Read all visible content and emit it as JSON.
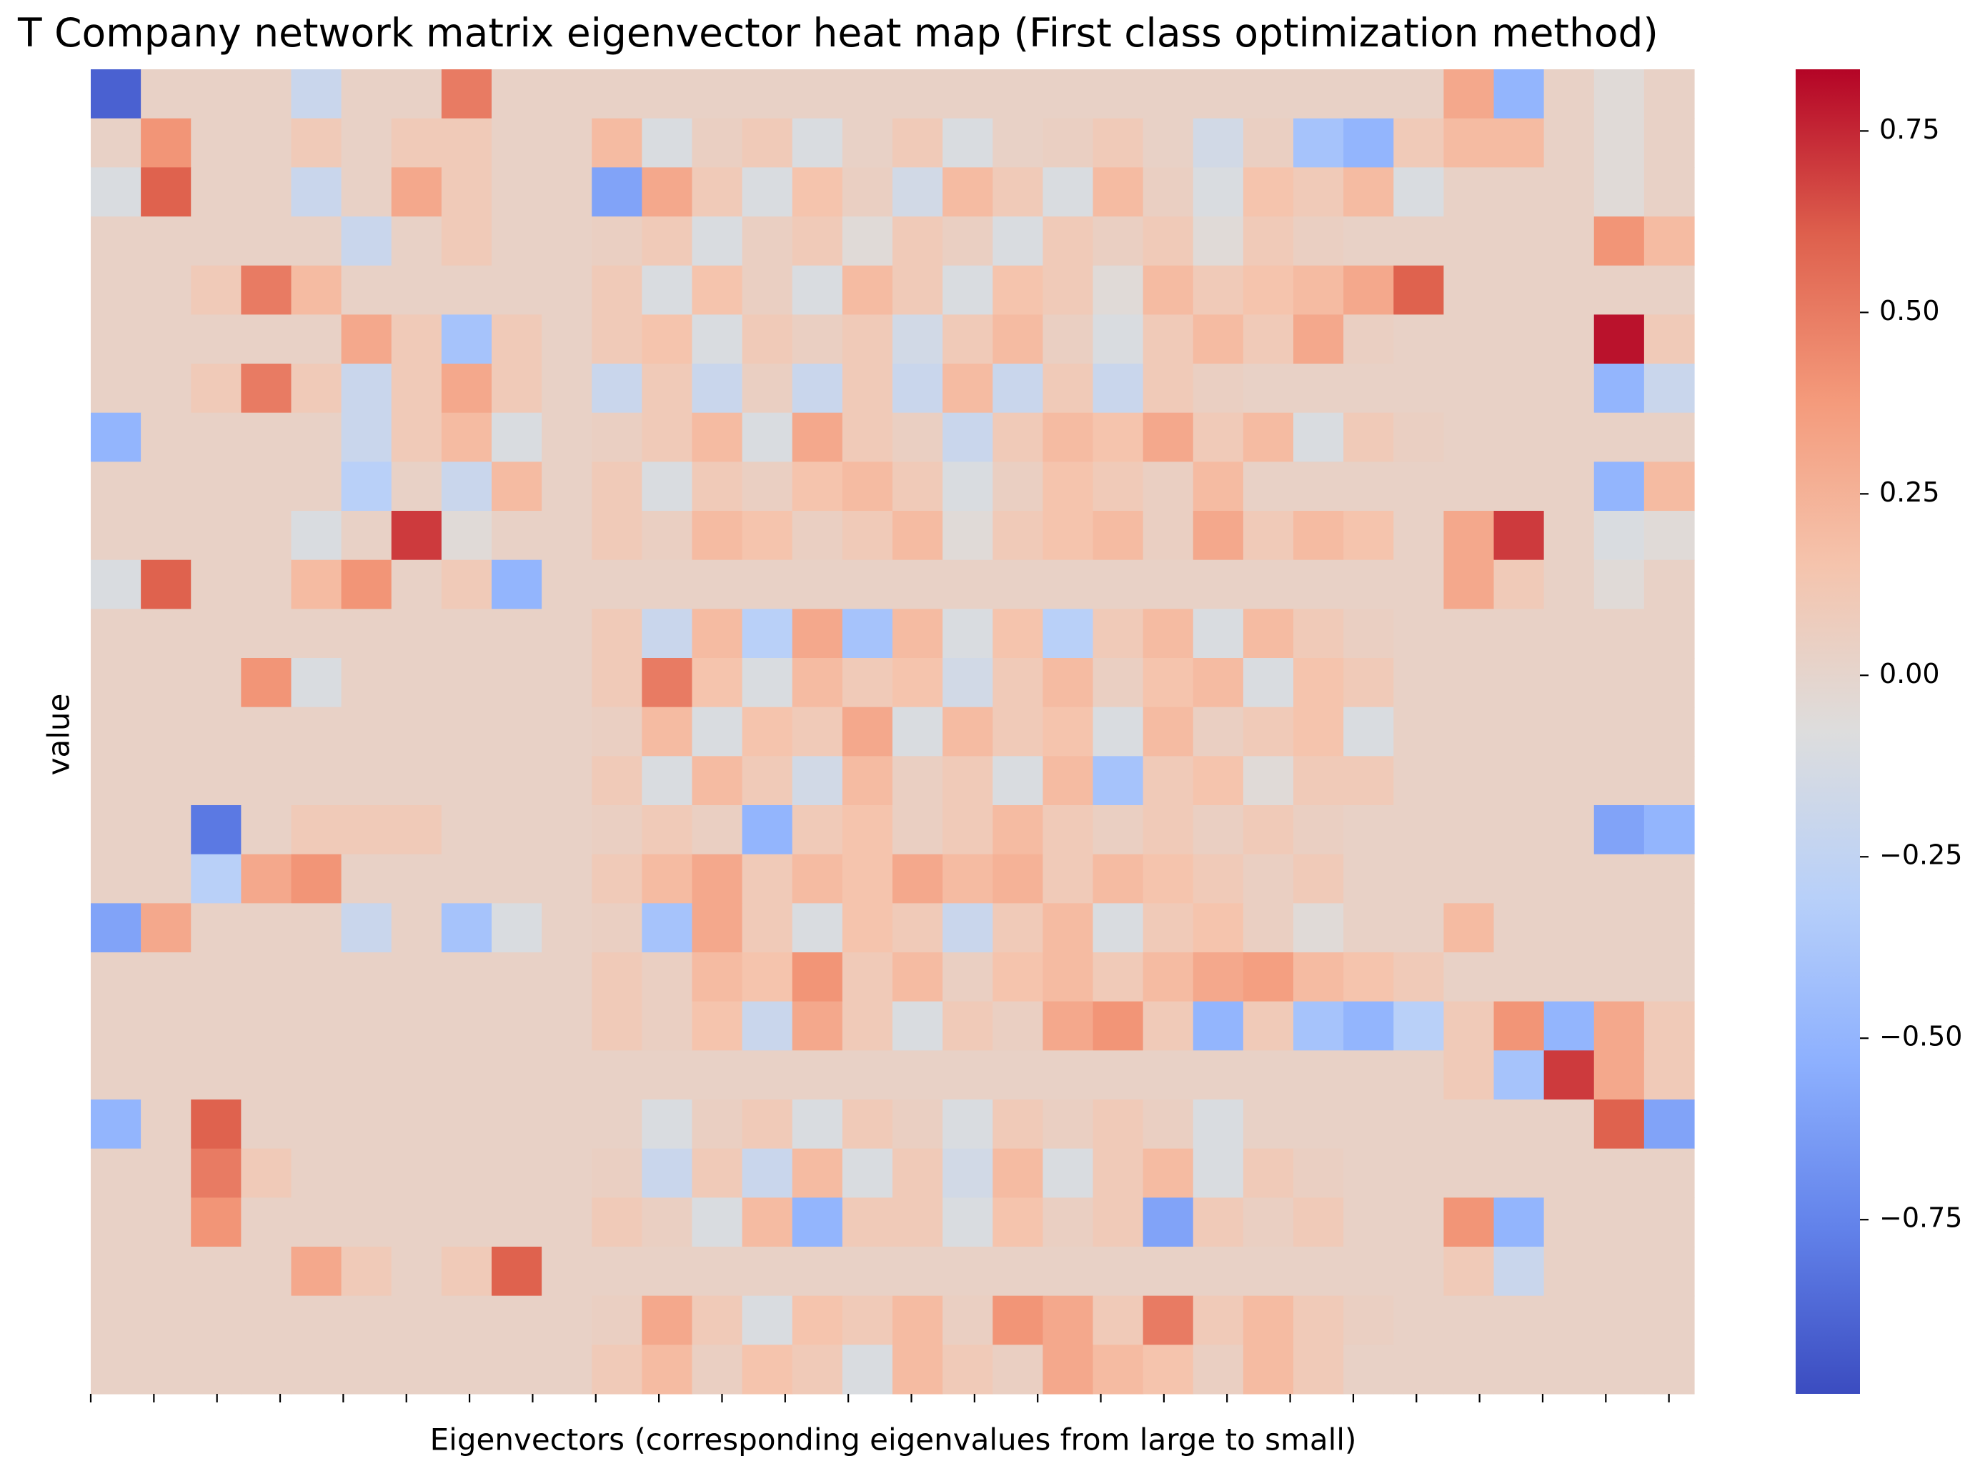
{
  "chart_data": {
    "type": "heatmap",
    "title": "T Company network matrix eigenvector heat map (First class optimization method)",
    "xlabel": "Eigenvectors (corresponding eigenvalues from large to small)",
    "ylabel": "value",
    "colormap": "coolwarm",
    "clim": [
      -0.99,
      0.835
    ],
    "cticks": [
      0.75,
      {
        "value": 0.5,
        "label": "0.50"
      },
      0.25,
      {
        "value": 0,
        "label": "0.00"
      },
      {
        "value": -0.25,
        "label": "−0.25"
      },
      {
        "value": -0.5,
        "label": "−0.50"
      },
      {
        "value": -0.75,
        "label": "−0.75"
      }
    ],
    "xlim": [
      0,
      127
    ],
    "xticks": [
      0,
      5,
      10,
      15,
      20,
      25,
      30,
      35,
      40,
      45,
      50,
      55,
      60,
      65,
      70,
      75,
      80,
      85,
      90,
      95,
      100,
      105,
      110,
      115,
      120,
      125
    ],
    "values": [
      [
        -0.9,
        0.03,
        0.03,
        0.03,
        -0.2,
        0.03,
        0.03,
        0.5,
        0.03,
        0.03,
        0.03,
        0.03,
        0.03,
        0.03,
        0.03,
        0.03,
        0.03,
        0.03,
        0.03,
        0.03,
        0.03,
        0.03,
        0.03,
        0.03,
        0.03,
        0.03,
        0.03,
        0.3,
        -0.5,
        0.03,
        -0.05,
        0.03
      ],
      [
        0.03,
        0.4,
        0.03,
        0.03,
        0.1,
        0.03,
        0.1,
        0.1,
        0.03,
        0.03,
        0.2,
        -0.1,
        0.05,
        0.1,
        -0.1,
        0.03,
        0.1,
        -0.1,
        0.03,
        0.05,
        0.1,
        0.03,
        -0.15,
        0.05,
        -0.4,
        -0.5,
        0.1,
        0.2,
        0.2,
        0.03,
        -0.05,
        0.03
      ],
      [
        -0.1,
        0.6,
        0.03,
        0.03,
        -0.2,
        0.03,
        0.3,
        0.1,
        0.03,
        0.03,
        -0.6,
        0.3,
        0.1,
        -0.1,
        0.15,
        0.05,
        -0.15,
        0.2,
        0.1,
        -0.1,
        0.2,
        0.05,
        -0.1,
        0.15,
        0.1,
        0.2,
        -0.1,
        0.03,
        0.03,
        0.03,
        -0.05,
        0.03
      ],
      [
        0.03,
        0.03,
        0.03,
        0.03,
        0.03,
        -0.2,
        0.03,
        0.1,
        0.03,
        0.03,
        0.05,
        0.1,
        -0.1,
        0.05,
        0.1,
        -0.05,
        0.1,
        0.05,
        -0.1,
        0.1,
        0.05,
        0.1,
        -0.05,
        0.1,
        0.05,
        0.03,
        0.03,
        0.03,
        0.03,
        0.03,
        0.4,
        0.2
      ],
      [
        0.03,
        0.03,
        0.1,
        0.5,
        0.2,
        0.03,
        0.03,
        0.03,
        0.03,
        0.03,
        0.1,
        -0.1,
        0.15,
        0.05,
        -0.1,
        0.2,
        0.1,
        -0.1,
        0.15,
        0.1,
        -0.05,
        0.2,
        0.1,
        0.15,
        0.2,
        0.3,
        0.6,
        0.03,
        0.03,
        0.03,
        0.03,
        0.03
      ],
      [
        0.03,
        0.03,
        0.03,
        0.03,
        0.03,
        0.3,
        0.1,
        -0.4,
        0.1,
        0.03,
        0.1,
        0.15,
        -0.1,
        0.1,
        0.05,
        0.1,
        -0.15,
        0.1,
        0.2,
        0.05,
        -0.1,
        0.1,
        0.2,
        0.1,
        0.3,
        0.05,
        0.03,
        0.03,
        0.03,
        0.03,
        0.8,
        0.1
      ],
      [
        0.03,
        0.03,
        0.1,
        0.5,
        0.1,
        -0.2,
        0.1,
        0.3,
        0.1,
        0.03,
        -0.2,
        0.1,
        -0.2,
        0.05,
        -0.2,
        0.1,
        -0.2,
        0.2,
        -0.2,
        0.1,
        -0.2,
        0.1,
        0.05,
        0.03,
        0.03,
        0.03,
        0.03,
        0.03,
        0.03,
        0.03,
        -0.5,
        -0.2
      ],
      [
        -0.5,
        0.03,
        0.03,
        0.03,
        0.03,
        -0.2,
        0.1,
        0.2,
        -0.1,
        0.03,
        0.05,
        0.1,
        0.2,
        -0.1,
        0.3,
        0.1,
        0.05,
        -0.2,
        0.1,
        0.2,
        0.15,
        0.3,
        0.1,
        0.2,
        -0.1,
        0.1,
        0.05,
        0.03,
        0.03,
        0.03,
        0.03,
        0.03
      ],
      [
        0.03,
        0.03,
        0.03,
        0.03,
        0.03,
        -0.3,
        0.03,
        -0.2,
        0.2,
        0.03,
        0.1,
        -0.1,
        0.1,
        0.05,
        0.15,
        0.2,
        0.1,
        -0.1,
        0.05,
        0.15,
        0.1,
        0.05,
        0.2,
        0.03,
        0.03,
        0.03,
        0.03,
        0.03,
        0.03,
        0.03,
        -0.5,
        0.2
      ],
      [
        0.03,
        0.03,
        0.03,
        0.03,
        -0.1,
        0.03,
        0.7,
        -0.05,
        0.03,
        0.03,
        0.1,
        0.05,
        0.2,
        0.15,
        0.05,
        0.1,
        0.2,
        -0.05,
        0.1,
        0.15,
        0.2,
        0.05,
        0.3,
        0.1,
        0.2,
        0.15,
        0.03,
        0.3,
        0.7,
        0.03,
        -0.1,
        -0.05
      ],
      [
        -0.1,
        0.6,
        0.03,
        0.03,
        0.2,
        0.4,
        0.03,
        0.1,
        -0.5,
        0.03,
        0.03,
        0.03,
        0.03,
        0.03,
        0.03,
        0.03,
        0.03,
        0.03,
        0.03,
        0.03,
        0.03,
        0.03,
        0.03,
        0.03,
        0.03,
        0.03,
        0.03,
        0.3,
        0.1,
        0.03,
        -0.05,
        0.03
      ],
      [
        0.03,
        0.03,
        0.03,
        0.03,
        0.03,
        0.03,
        0.03,
        0.03,
        0.03,
        0.03,
        0.1,
        -0.2,
        0.2,
        -0.3,
        0.3,
        -0.4,
        0.2,
        -0.1,
        0.15,
        -0.3,
        0.1,
        0.2,
        -0.1,
        0.2,
        0.1,
        0.05,
        0.03,
        0.03,
        0.03,
        0.03,
        0.03,
        0.03
      ],
      [
        0.03,
        0.03,
        0.03,
        0.4,
        -0.1,
        0.03,
        0.03,
        0.03,
        0.03,
        0.03,
        0.1,
        0.5,
        0.15,
        -0.1,
        0.2,
        0.1,
        0.15,
        -0.15,
        0.1,
        0.2,
        0.05,
        0.15,
        0.2,
        -0.1,
        0.15,
        0.1,
        0.03,
        0.03,
        0.03,
        0.03,
        0.03,
        0.03
      ],
      [
        0.03,
        0.03,
        0.03,
        0.03,
        0.03,
        0.03,
        0.03,
        0.03,
        0.03,
        0.03,
        0.05,
        0.2,
        -0.1,
        0.15,
        0.1,
        0.3,
        -0.1,
        0.2,
        0.1,
        0.15,
        -0.1,
        0.2,
        0.05,
        0.1,
        0.15,
        -0.1,
        0.03,
        0.03,
        0.03,
        0.03,
        0.03,
        0.03
      ],
      [
        0.03,
        0.03,
        0.03,
        0.03,
        0.03,
        0.03,
        0.03,
        0.03,
        0.03,
        0.03,
        0.1,
        -0.1,
        0.2,
        0.1,
        -0.15,
        0.2,
        0.05,
        0.1,
        -0.1,
        0.2,
        -0.4,
        0.1,
        0.15,
        -0.05,
        0.1,
        0.1,
        0.03,
        0.03,
        0.03,
        0.03,
        0.03,
        0.03
      ],
      [
        0.03,
        0.03,
        -0.8,
        0.03,
        0.1,
        0.1,
        0.1,
        0.03,
        0.03,
        0.03,
        0.05,
        0.1,
        0.05,
        -0.5,
        0.1,
        0.15,
        0.05,
        0.1,
        0.2,
        0.1,
        0.05,
        0.1,
        0.05,
        0.1,
        0.05,
        0.03,
        0.03,
        0.03,
        0.03,
        0.03,
        -0.6,
        -0.5
      ],
      [
        0.03,
        0.03,
        -0.3,
        0.3,
        0.4,
        0.03,
        0.03,
        0.03,
        0.03,
        0.03,
        0.1,
        0.2,
        0.3,
        0.1,
        0.2,
        0.15,
        0.3,
        0.2,
        0.25,
        0.1,
        0.2,
        0.15,
        0.1,
        0.05,
        0.1,
        0.03,
        0.03,
        0.03,
        0.03,
        0.03,
        0.03,
        0.03
      ],
      [
        -0.6,
        0.3,
        0.03,
        0.03,
        0.03,
        -0.2,
        0.03,
        -0.4,
        -0.1,
        0.03,
        0.05,
        -0.4,
        0.3,
        0.1,
        -0.1,
        0.15,
        0.1,
        -0.2,
        0.1,
        0.2,
        -0.1,
        0.1,
        0.15,
        0.05,
        -0.05,
        0.03,
        0.03,
        0.2,
        0.03,
        0.03,
        0.03,
        0.03
      ],
      [
        0.03,
        0.03,
        0.03,
        0.03,
        0.03,
        0.03,
        0.03,
        0.03,
        0.03,
        0.03,
        0.1,
        0.05,
        0.2,
        0.15,
        0.4,
        0.1,
        0.2,
        0.05,
        0.15,
        0.2,
        0.1,
        0.2,
        0.3,
        0.35,
        0.2,
        0.15,
        0.1,
        0.03,
        0.03,
        0.03,
        0.03,
        0.03
      ],
      [
        0.03,
        0.03,
        0.03,
        0.03,
        0.03,
        0.03,
        0.03,
        0.03,
        0.03,
        0.03,
        0.1,
        0.05,
        0.15,
        -0.2,
        0.3,
        0.1,
        -0.1,
        0.1,
        0.05,
        0.3,
        0.4,
        0.1,
        -0.5,
        0.1,
        -0.4,
        -0.5,
        -0.3,
        0.1,
        0.4,
        -0.5,
        0.3,
        0.1
      ],
      [
        0.03,
        0.03,
        0.03,
        0.03,
        0.03,
        0.03,
        0.03,
        0.03,
        0.03,
        0.03,
        0.03,
        0.03,
        0.03,
        0.03,
        0.03,
        0.03,
        0.03,
        0.03,
        0.03,
        0.03,
        0.03,
        0.03,
        0.03,
        0.03,
        0.03,
        0.03,
        0.03,
        0.1,
        -0.4,
        0.7,
        0.3,
        0.1
      ],
      [
        -0.5,
        0.03,
        0.6,
        0.03,
        0.03,
        0.03,
        0.03,
        0.03,
        0.03,
        0.03,
        0.03,
        -0.1,
        0.05,
        0.1,
        -0.1,
        0.1,
        0.05,
        -0.1,
        0.1,
        0.05,
        0.1,
        0.05,
        -0.1,
        0.03,
        0.03,
        0.03,
        0.03,
        0.03,
        0.03,
        0.03,
        0.6,
        -0.6
      ],
      [
        0.03,
        0.03,
        0.5,
        0.1,
        0.03,
        0.03,
        0.03,
        0.03,
        0.03,
        0.03,
        0.05,
        -0.2,
        0.1,
        -0.2,
        0.2,
        -0.1,
        0.1,
        -0.15,
        0.2,
        -0.1,
        0.1,
        0.2,
        -0.1,
        0.1,
        0.05,
        0.03,
        0.03,
        0.03,
        0.03,
        0.03,
        0.03,
        0.03
      ],
      [
        0.03,
        0.03,
        0.4,
        0.03,
        0.03,
        0.03,
        0.03,
        0.03,
        0.03,
        0.03,
        0.1,
        0.05,
        -0.1,
        0.2,
        -0.5,
        0.1,
        0.1,
        -0.1,
        0.15,
        0.05,
        0.1,
        -0.6,
        0.1,
        0.05,
        0.1,
        0.03,
        0.03,
        0.4,
        -0.5,
        0.03,
        0.03,
        0.03
      ],
      [
        0.03,
        0.03,
        0.03,
        0.03,
        0.3,
        0.1,
        0.03,
        0.1,
        0.6,
        0.03,
        0.03,
        0.03,
        0.03,
        0.03,
        0.03,
        0.03,
        0.03,
        0.03,
        0.03,
        0.03,
        0.03,
        0.03,
        0.03,
        0.03,
        0.03,
        0.03,
        0.03,
        0.1,
        -0.2,
        0.03,
        0.03,
        0.03
      ],
      [
        0.03,
        0.03,
        0.03,
        0.03,
        0.03,
        0.03,
        0.03,
        0.03,
        0.03,
        0.03,
        0.05,
        0.3,
        0.1,
        -0.1,
        0.15,
        0.1,
        0.2,
        0.05,
        0.4,
        0.3,
        0.1,
        0.5,
        0.1,
        0.2,
        0.1,
        0.05,
        0.03,
        0.03,
        0.03,
        0.03,
        0.03,
        0.03
      ],
      [
        0.03,
        0.03,
        0.03,
        0.03,
        0.03,
        0.03,
        0.03,
        0.03,
        0.03,
        0.03,
        0.1,
        0.2,
        0.05,
        0.15,
        0.1,
        -0.1,
        0.2,
        0.1,
        0.05,
        0.3,
        0.2,
        0.15,
        0.05,
        0.2,
        0.1,
        0.03,
        0.03,
        0.03,
        0.03,
        0.03,
        0.03,
        0.03
      ]
    ]
  }
}
